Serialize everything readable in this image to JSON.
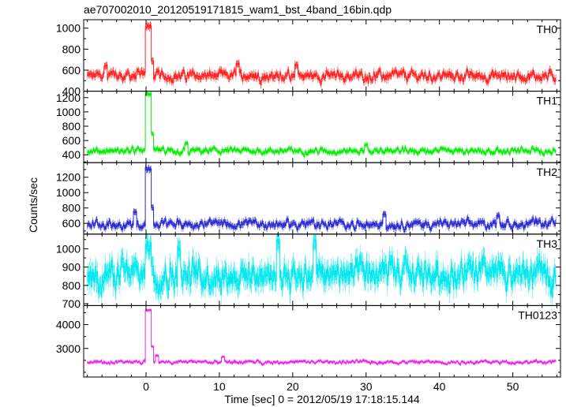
{
  "chart_data": {
    "type": "line",
    "title": "ae707002010_20120519171815_wam1_bst_4band_16bin.qdp",
    "xlabel": "Time [sec] 0 = 2012/05/19 17:18:15.144",
    "ylabel": "Counts/sec",
    "xlim": [
      -8.5,
      56.5
    ],
    "x_ticks": [
      0,
      10,
      20,
      30,
      40,
      50
    ],
    "grid": false,
    "error_bars": true,
    "panels": [
      {
        "name": "TH0",
        "color": "#ff2020",
        "ylim": [
          400,
          1080
        ],
        "y_ticks": [
          400,
          600,
          800,
          1000
        ],
        "baseline": 545,
        "noise": 38,
        "peak": 1020,
        "spikes": [
          [
            -5.5,
            640
          ],
          [
            12.5,
            660
          ],
          [
            20.5,
            650
          ]
        ]
      },
      {
        "name": "TH1",
        "color": "#00ee00",
        "ylim": [
          290,
          1290
        ],
        "y_ticks": [
          400,
          600,
          800,
          1000,
          1200
        ],
        "baseline": 455,
        "noise": 35,
        "peak": 1250,
        "spikes": [
          [
            5.5,
            560
          ],
          [
            30.0,
            540
          ]
        ]
      },
      {
        "name": "TH2",
        "color": "#2a2ad0",
        "ylim": [
          460,
          1390
        ],
        "y_ticks": [
          600,
          800,
          1000,
          1200
        ],
        "baseline": 590,
        "noise": 45,
        "peak": 1310,
        "spikes": [
          [
            -1.5,
            750
          ],
          [
            32.5,
            720
          ],
          [
            48.0,
            700
          ]
        ]
      },
      {
        "name": "TH3",
        "color": "#00e8ee",
        "ylim": [
          690,
          1080
        ],
        "y_ticks": [
          700,
          800,
          900,
          1000
        ],
        "baseline": 860,
        "noise": 60,
        "peak": 1010,
        "spikes": [
          [
            4.5,
            1000
          ],
          [
            18.0,
            1040
          ],
          [
            23.0,
            1040
          ]
        ]
      },
      {
        "name": "TH0123",
        "color": "#ee22ee",
        "ylim": [
          1800,
          4800
        ],
        "y_ticks": [
          3000,
          4000
        ],
        "baseline": 2430,
        "noise": 60,
        "peak": 4600,
        "spikes": [
          [
            1.5,
            2700
          ],
          [
            10.5,
            2650
          ]
        ]
      }
    ]
  }
}
